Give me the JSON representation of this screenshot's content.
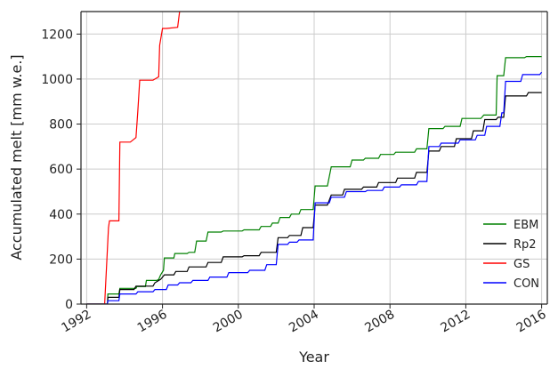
{
  "chart_data": {
    "type": "line",
    "xlabel": "Year",
    "ylabel": "Accumulated melt [mm w.e.]",
    "xlim": [
      1991.7,
      2016.3
    ],
    "ylim": [
      0,
      1300
    ],
    "x_ticks": [
      1992,
      1996,
      2000,
      2004,
      2008,
      2012,
      2016
    ],
    "y_ticks": [
      0,
      200,
      400,
      600,
      800,
      1000,
      1200
    ],
    "grid": true,
    "legend_position": "bottom-right",
    "series": [
      {
        "name": "EBM",
        "color": "#008000",
        "x": [
          1992.0,
          1993.1,
          1993.12,
          1993.7,
          1993.75,
          1994.6,
          1994.65,
          1995.1,
          1995.15,
          1995.7,
          1995.8,
          1995.9,
          1996.05,
          1996.1,
          1996.6,
          1996.65,
          1997.3,
          1997.4,
          1997.7,
          1997.8,
          1998.3,
          1998.4,
          1999.1,
          1999.2,
          2000.2,
          2000.3,
          2001.1,
          2001.2,
          2001.7,
          2001.8,
          2002.1,
          2002.2,
          2002.7,
          2002.8,
          2003.2,
          2003.3,
          2003.95,
          2004.05,
          2004.7,
          2004.9,
          2005.9,
          2006.0,
          2006.6,
          2006.7,
          2007.4,
          2007.5,
          2008.2,
          2008.3,
          2009.3,
          2009.4,
          2009.95,
          2010.05,
          2010.8,
          2010.9,
          2011.7,
          2011.8,
          2012.8,
          2012.95,
          2013.6,
          2013.65,
          2014.0,
          2014.1,
          2015.1,
          2015.2,
          2016.0
        ],
        "y": [
          0,
          0,
          45,
          45,
          70,
          70,
          78,
          78,
          105,
          105,
          110,
          130,
          150,
          205,
          205,
          225,
          225,
          230,
          230,
          280,
          280,
          320,
          320,
          325,
          325,
          330,
          330,
          345,
          345,
          360,
          360,
          385,
          385,
          400,
          400,
          420,
          420,
          525,
          525,
          610,
          610,
          640,
          640,
          648,
          648,
          665,
          665,
          675,
          675,
          690,
          690,
          780,
          780,
          790,
          790,
          825,
          825,
          840,
          840,
          1015,
          1015,
          1095,
          1095,
          1100,
          1100
        ]
      },
      {
        "name": "Rp2",
        "color": "#000000",
        "x": [
          1992.0,
          1993.1,
          1993.12,
          1993.7,
          1993.75,
          1994.5,
          1994.6,
          1995.5,
          1995.6,
          1995.9,
          1996.1,
          1996.6,
          1996.7,
          1997.3,
          1997.4,
          1998.3,
          1998.4,
          1999.1,
          1999.2,
          2000.2,
          2000.3,
          2001.1,
          2001.2,
          2002.0,
          2002.1,
          2002.6,
          2002.7,
          2003.3,
          2003.4,
          2003.95,
          2004.05,
          2004.7,
          2004.9,
          2005.5,
          2005.6,
          2006.5,
          2006.6,
          2007.3,
          2007.4,
          2008.3,
          2008.4,
          2009.3,
          2009.4,
          2009.95,
          2010.05,
          2010.6,
          2010.7,
          2011.4,
          2011.5,
          2012.3,
          2012.4,
          2012.9,
          2013.0,
          2013.6,
          2013.7,
          2014.0,
          2014.1,
          2015.2,
          2015.3,
          2016.0
        ],
        "y": [
          0,
          0,
          30,
          30,
          65,
          65,
          80,
          80,
          95,
          110,
          130,
          130,
          145,
          145,
          165,
          165,
          185,
          185,
          210,
          210,
          215,
          215,
          230,
          230,
          295,
          295,
          305,
          305,
          340,
          340,
          440,
          440,
          485,
          485,
          510,
          510,
          520,
          520,
          540,
          540,
          560,
          560,
          585,
          585,
          680,
          680,
          700,
          700,
          735,
          735,
          770,
          770,
          820,
          820,
          830,
          830,
          925,
          925,
          940,
          940
        ]
      },
      {
        "name": "GS",
        "color": "#ff0000",
        "x": [
          1992.0,
          1992.95,
          1993.15,
          1993.2,
          1993.7,
          1993.75,
          1994.2,
          1994.3,
          1994.6,
          1994.7,
          1994.8,
          1995.0,
          1995.5,
          1995.6,
          1995.8,
          1995.85,
          1996.0,
          1996.2,
          1996.8,
          1996.9
        ],
        "y": [
          0,
          0,
          340,
          370,
          370,
          720,
          720,
          720,
          740,
          860,
          995,
          995,
          995,
          1000,
          1010,
          1150,
          1225,
          1225,
          1230,
          1300
        ]
      },
      {
        "name": "CON",
        "color": "#0000ff",
        "x": [
          1992.0,
          1993.1,
          1993.12,
          1993.7,
          1993.75,
          1994.6,
          1994.7,
          1995.5,
          1995.6,
          1996.2,
          1996.3,
          1996.8,
          1996.9,
          1997.5,
          1997.6,
          1998.4,
          1998.5,
          1999.4,
          1999.5,
          2000.5,
          2000.6,
          2001.4,
          2001.5,
          2002.0,
          2002.1,
          2002.6,
          2002.7,
          2003.1,
          2003.2,
          2003.95,
          2004.05,
          2004.8,
          2004.9,
          2005.6,
          2005.7,
          2006.7,
          2006.8,
          2007.6,
          2007.7,
          2008.5,
          2008.6,
          2009.4,
          2009.5,
          2009.95,
          2010.05,
          2010.6,
          2010.7,
          2011.6,
          2011.7,
          2012.5,
          2012.6,
          2013.0,
          2013.1,
          2013.8,
          2013.9,
          2014.0,
          2014.1,
          2014.9,
          2015.0,
          2015.9,
          2016.0
        ],
        "y": [
          0,
          0,
          15,
          15,
          45,
          45,
          55,
          55,
          65,
          65,
          85,
          85,
          95,
          95,
          105,
          105,
          120,
          120,
          140,
          140,
          150,
          150,
          175,
          175,
          265,
          265,
          275,
          275,
          285,
          285,
          450,
          450,
          475,
          475,
          500,
          500,
          505,
          505,
          520,
          520,
          530,
          530,
          545,
          545,
          700,
          700,
          715,
          715,
          730,
          730,
          750,
          750,
          790,
          790,
          850,
          850,
          990,
          990,
          1020,
          1020,
          1030
        ]
      }
    ]
  }
}
